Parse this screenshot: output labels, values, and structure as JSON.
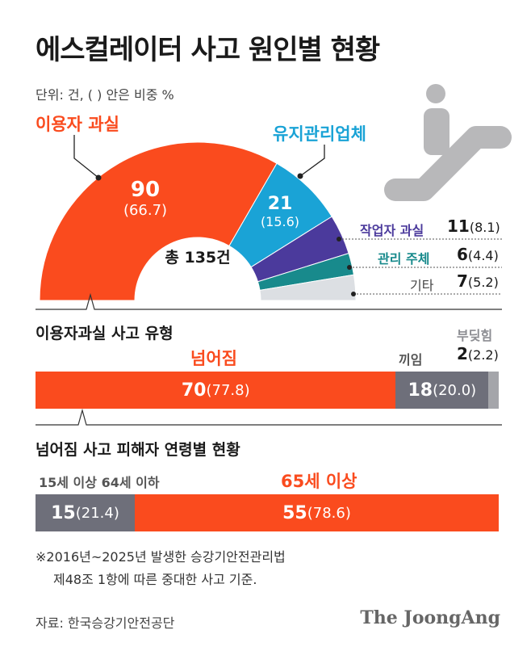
{
  "title": "에스컬레이터 사고 원인별 현황",
  "unit": "단위: 건, ( ) 안은 비중 %",
  "colors": {
    "orange": "#fa4b1e",
    "blue": "#1aa3d6",
    "purple": "#4b3a9c",
    "teal": "#188a8c",
    "light": "#dcdfe3",
    "gray": "#6e6f7a",
    "silver": "#a4a5aa",
    "icon": "#b8b8ba"
  },
  "chart_data": [
    {
      "type": "pie",
      "total_label": "총 135건",
      "slices": [
        {
          "label": "이용자 과실",
          "value": "90",
          "pct": "(66.7)",
          "v": 90,
          "color": "#fa4b1e"
        },
        {
          "label": "유지관리업체",
          "value": "21",
          "pct": "(15.6)",
          "v": 21,
          "color": "#1aa3d6"
        },
        {
          "label": "작업자 과실",
          "value": "11",
          "pct": "(8.1)",
          "v": 11,
          "color": "#4b3a9c"
        },
        {
          "label": "관리 주체",
          "value": "6",
          "pct": "(4.4)",
          "v": 6,
          "color": "#188a8c"
        },
        {
          "label": "기타",
          "value": "7",
          "pct": "(5.2)",
          "v": 7,
          "color": "#dcdfe3"
        }
      ]
    },
    {
      "type": "bar",
      "title": "이용자과실 사고 유형",
      "segments": [
        {
          "label": "넘어짐",
          "value": "70",
          "pct": "(77.8)",
          "v": 70,
          "color": "#fa4b1e"
        },
        {
          "label": "끼임",
          "value": "18",
          "pct": "(20.0)",
          "v": 18,
          "color": "#6e6f7a"
        },
        {
          "label": "부딪힘",
          "value": "2",
          "pct": "(2.2)",
          "v": 2,
          "color": "#a4a5aa"
        }
      ]
    },
    {
      "type": "bar",
      "title": "넘어짐 사고 피해자 연령별 현황",
      "segments": [
        {
          "label": "15세 이상 64세 이하",
          "value": "15",
          "pct": "(21.4)",
          "v": 15,
          "color": "#6e6f7a"
        },
        {
          "label": "65세 이상",
          "value": "55",
          "pct": "(78.6)",
          "v": 55,
          "color": "#fa4b1e"
        }
      ]
    }
  ],
  "note_line1": "※2016년~2025년 발생한 승강기안전관리법",
  "note_line2": "제48조 1항에 따른 중대한 사고 기준.",
  "source": "자료: 한국승강기안전공단",
  "logo": "The JoongAng"
}
